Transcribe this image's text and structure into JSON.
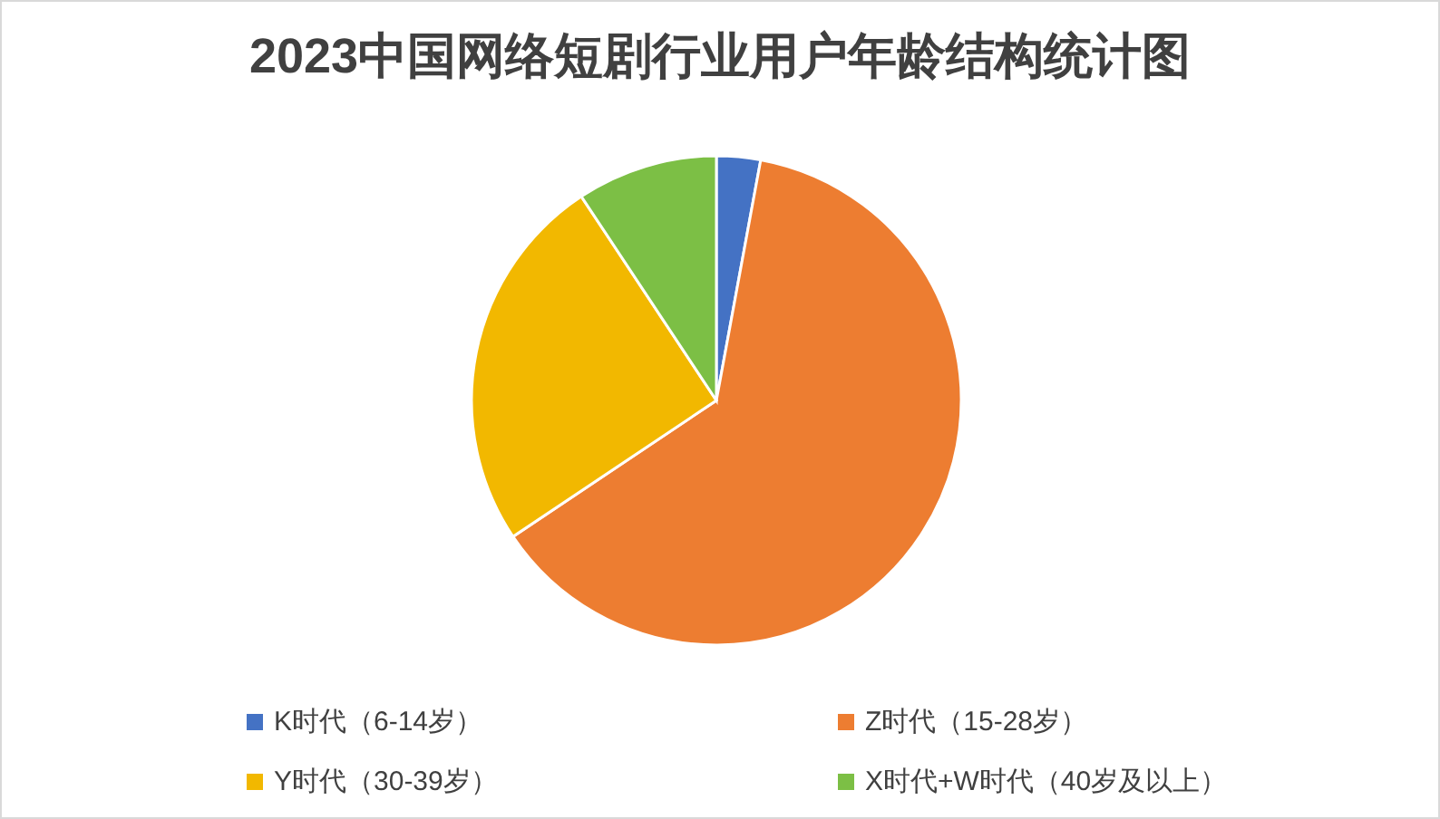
{
  "chart_data": {
    "type": "pie",
    "title": "2023中国网络短剧行业用户年龄结构统计图",
    "categories": [
      "K时代（6-14岁）",
      "Z时代（15-28岁）",
      "Y时代（30-39岁）",
      "X时代+W时代（40岁及以上）"
    ],
    "values": [
      2.9,
      62.7,
      25.1,
      9.3
    ],
    "colors": [
      "#4472c4",
      "#ed7d31",
      "#f2b800",
      "#7cbf45"
    ],
    "legend": "bottom"
  }
}
